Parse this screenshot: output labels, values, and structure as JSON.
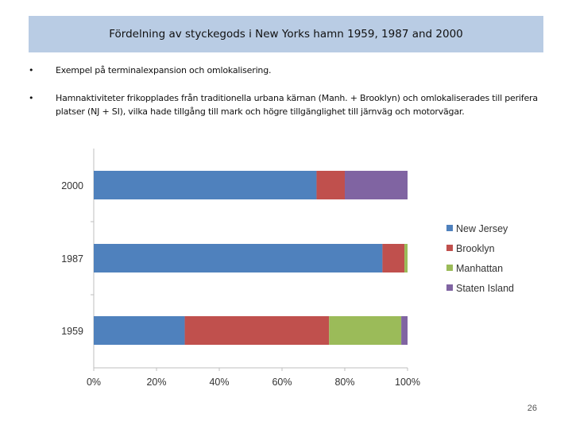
{
  "slide": {
    "title": "Fördelning av styckegods i New Yorks hamn 1959, 1987 and 2000",
    "bullets": [
      "Exempel på terminalexpansion och omlokalisering.",
      "Hamnaktiviteter frikopplades från traditionella urbana kärnan (Manh. + Brooklyn) och omlokaliserades till perifera platser (NJ + SI), vilka hade tillgång till mark och högre tillgänglighet till järnväg och motorvägar."
    ],
    "bullet_marker": "•",
    "page_number": "26"
  },
  "chart_data": {
    "type": "bar",
    "orientation": "horizontal",
    "stacked": true,
    "normalized": true,
    "categories": [
      "2000",
      "1987",
      "1959"
    ],
    "series": [
      {
        "name": "New Jersey",
        "color": "#4f81bd",
        "values": [
          71,
          92,
          29
        ]
      },
      {
        "name": "Brooklyn",
        "color": "#c0504d",
        "values": [
          9,
          7,
          46
        ]
      },
      {
        "name": "Manhattan",
        "color": "#9bbb59",
        "values": [
          0,
          1,
          23
        ]
      },
      {
        "name": "Staten Island",
        "color": "#8064a2",
        "values": [
          20,
          0,
          2
        ]
      }
    ],
    "xlim": [
      0,
      100
    ],
    "xticks": [
      "0%",
      "20%",
      "40%",
      "60%",
      "80%",
      "100%"
    ],
    "grid": false,
    "legend_position": "right"
  }
}
